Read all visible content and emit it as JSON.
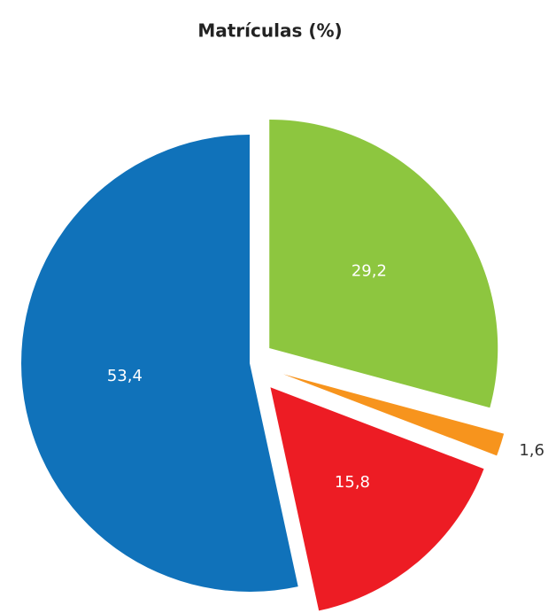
{
  "chart_data": {
    "type": "pie",
    "title": "Matrículas (%)",
    "categories": [
      null,
      null,
      null,
      null
    ],
    "values": [
      29.2,
      1.6,
      15.8,
      53.4
    ],
    "value_labels": [
      "29,2",
      "1,6",
      "15,8",
      "53,4"
    ],
    "colors": [
      "#8dc63f",
      "#f7941d",
      "#ed1c24",
      "#1072ba"
    ]
  }
}
